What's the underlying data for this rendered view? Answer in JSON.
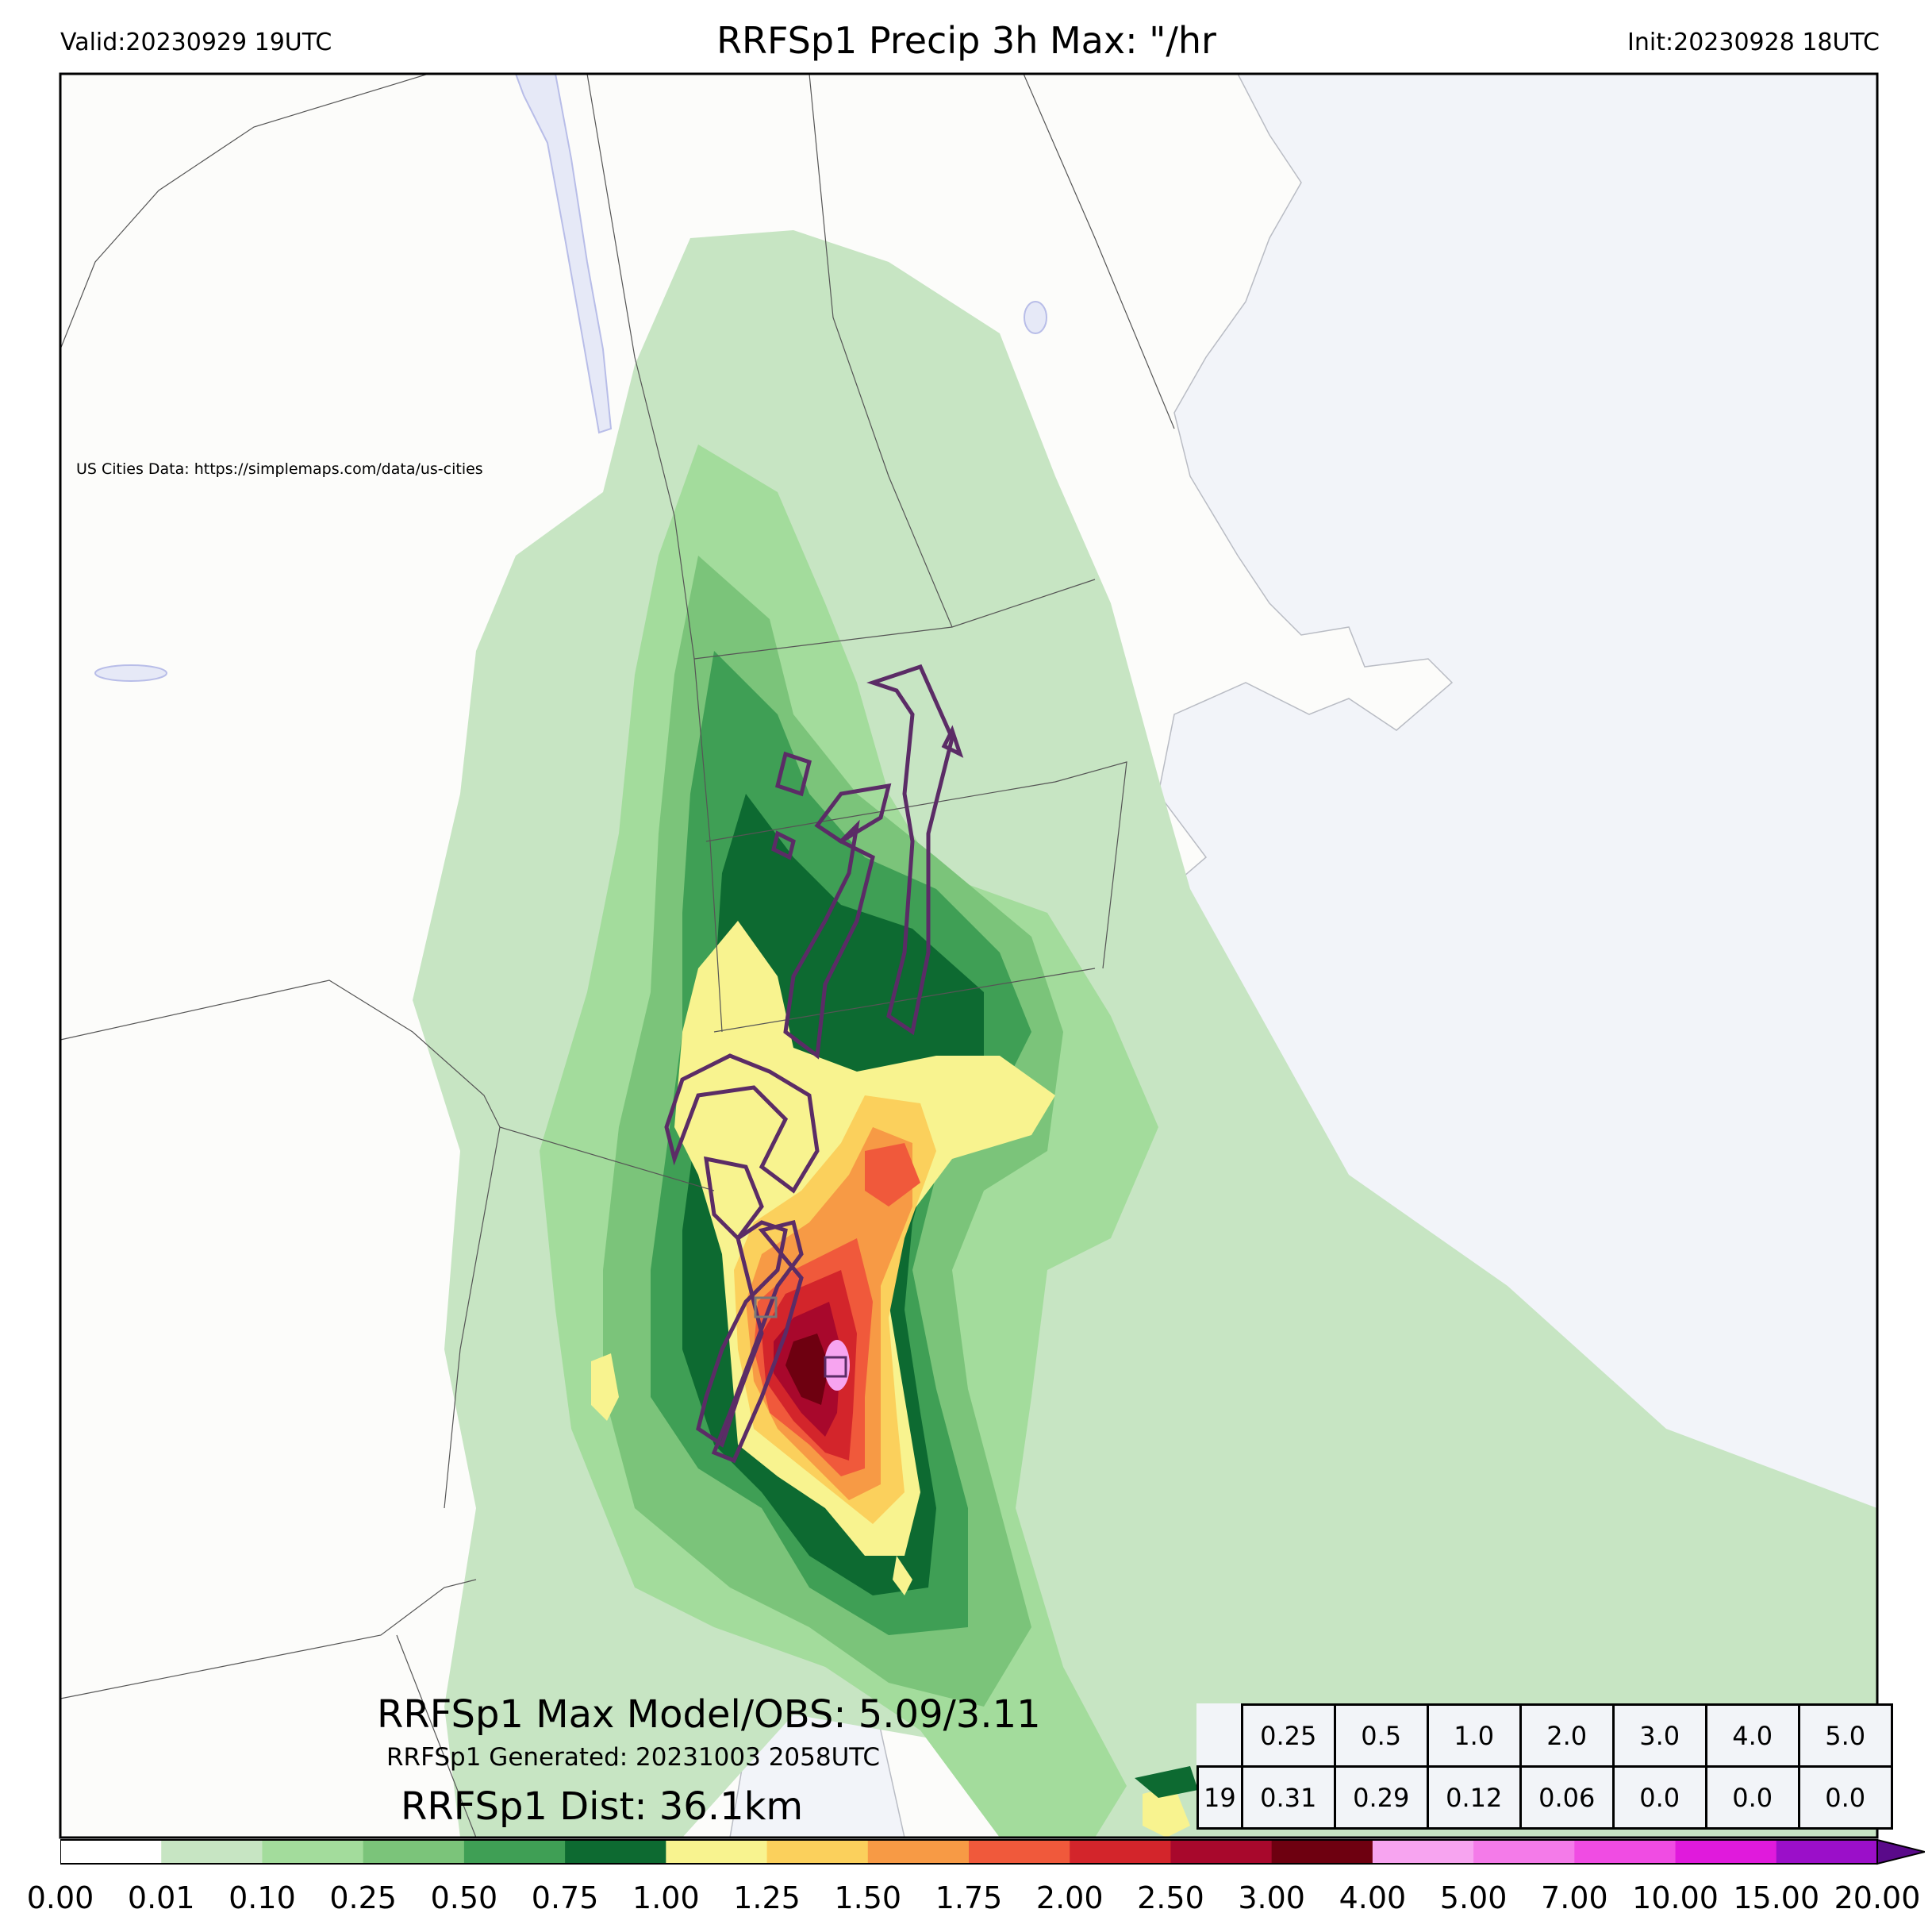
{
  "header": {
    "valid": "Valid:20230929 19UTC",
    "title": "RRFSp1 Precip 3h Max: \"/hr",
    "init": "Init:20230928 18UTC"
  },
  "credit": "US Cities Data: https://simplemaps.com/data/us-cities",
  "annotations": {
    "max_model_obs": "RRFSp1 Max Model/OBS: 5.09/3.11",
    "generated": "RRFSp1 Generated: 20231003 2058UTC",
    "distance": "RRFSp1 Dist: 36.1km"
  },
  "threshold_table": {
    "thresholds": [
      "0.25",
      "0.5",
      "1.0",
      "2.0",
      "3.0",
      "4.0",
      "5.0"
    ],
    "row_label": "19",
    "values": [
      "0.31",
      "0.29",
      "0.12",
      "0.06",
      "0.0",
      "0.0",
      "0.0"
    ]
  },
  "colorbar": {
    "ticks": [
      "0.00",
      "0.01",
      "0.10",
      "0.25",
      "0.50",
      "0.75",
      "1.00",
      "1.25",
      "1.50",
      "1.75",
      "2.00",
      "2.50",
      "3.00",
      "4.00",
      "5.00",
      "7.00",
      "10.00",
      "15.00",
      "20.00"
    ],
    "colors": [
      "#ffffff",
      "#c7e5c3",
      "#a3dc9c",
      "#7bc47a",
      "#3f9f55",
      "#0d6a31",
      "#f8f38f",
      "#fbd05c",
      "#f79a45",
      "#f0593b",
      "#d3252b",
      "#a8082c",
      "#6e0010",
      "#f7a4f0",
      "#f47be9",
      "#f04ce3",
      "#e01adc",
      "#9b0fc9"
    ],
    "extend_color": "#5a0a8a"
  },
  "map_colors": {
    "ocean": "#f2f4f9",
    "land": "#fcfcfa",
    "border": "#555555",
    "contour": "#5b2c66"
  }
}
